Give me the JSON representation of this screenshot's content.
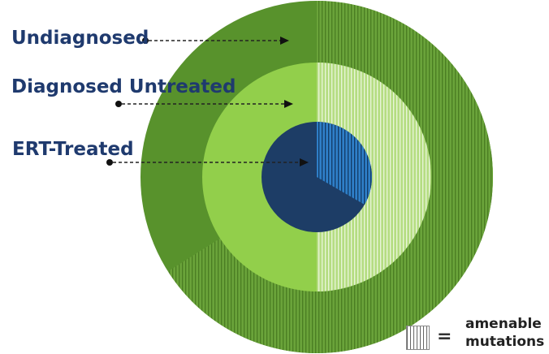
{
  "labels": {
    "undiagnosed": "Undiagnosed",
    "diagnosed_untreated": "Diagnosed Untreated",
    "ert_treated": "ERT-Treated"
  },
  "legend": {
    "symbol": "=",
    "line1": "amenable",
    "line2": "mutations"
  },
  "colors": {
    "undiagnosed_plain": "#58922c",
    "undiagnosed_amenable": "#6aa33a",
    "diagnosed_plain": "#92cf4b",
    "diagnosed_amenable": "#b5dd82",
    "ert_plain": "#1d3d66",
    "ert_amenable": "#2f7fc8",
    "label_text": "#1f3a6e"
  },
  "rings": [
    {
      "name": "Undiagnosed",
      "amenable_fraction": 0.63
    },
    {
      "name": "Diagnosed Untreated",
      "amenable_fraction": 0.5
    },
    {
      "name": "ERT-Treated",
      "amenable_fraction": 0.33
    }
  ]
}
